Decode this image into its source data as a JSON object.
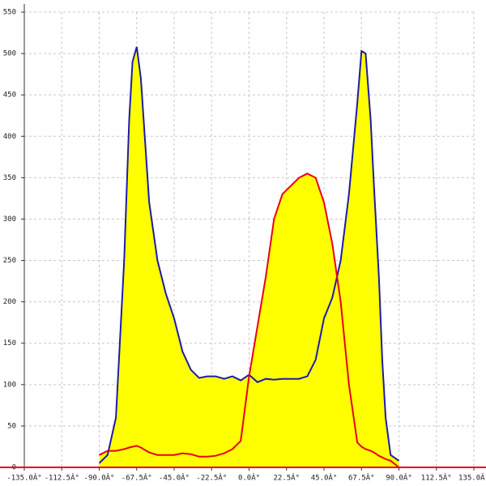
{
  "chart_data": {
    "type": "area",
    "x": [
      -90,
      -85,
      -80,
      -75,
      -72,
      -70,
      -67.5,
      -65,
      -60,
      -55,
      -50,
      -45,
      -40,
      -35,
      -30,
      -25,
      -20,
      -15,
      -10,
      -5,
      0,
      5,
      10,
      15,
      20,
      25,
      30,
      35,
      40,
      45,
      50,
      55,
      60,
      65,
      67.5,
      70,
      73,
      75,
      78,
      80,
      82,
      85,
      90
    ],
    "series": [
      {
        "color": "#1c1ca8",
        "fill": "#ffff00",
        "values": [
          5,
          15,
          60,
          250,
          420,
          490,
          508,
          470,
          320,
          250,
          210,
          180,
          140,
          118,
          108,
          110,
          110,
          107,
          110,
          105,
          112,
          103,
          107,
          106,
          107,
          107,
          107,
          110,
          130,
          180,
          205,
          250,
          330,
          440,
          503,
          500,
          420,
          340,
          230,
          130,
          60,
          15,
          8
        ]
      },
      {
        "color": "#e8001c",
        "fill": "#ffff00",
        "values": [
          15,
          20,
          20,
          22,
          24,
          25,
          26,
          24,
          18,
          15,
          15,
          15,
          17,
          16,
          13,
          13,
          14,
          17,
          22,
          32,
          110,
          170,
          230,
          300,
          330,
          340,
          350,
          355,
          350,
          320,
          270,
          200,
          100,
          30,
          25,
          22,
          20,
          18,
          14,
          12,
          10,
          8,
          0
        ]
      }
    ],
    "xlim": [
      -135,
      135
    ],
    "xticks": [
      {
        "value": -135,
        "label": "-135.0Â°"
      },
      {
        "value": -112.5,
        "label": "-112.5Â°"
      },
      {
        "value": -90,
        "label": "-90.0Â°"
      },
      {
        "value": -67.5,
        "label": "-67.5Â°"
      },
      {
        "value": -45,
        "label": "-45.0Â°"
      },
      {
        "value": -22.5,
        "label": "-22.5Â°"
      },
      {
        "value": 0,
        "label": "0.0Â°"
      },
      {
        "value": 22.5,
        "label": "22.5Â°"
      },
      {
        "value": 45,
        "label": "45.0Â°"
      },
      {
        "value": 67.5,
        "label": "67.5Â°"
      },
      {
        "value": 90,
        "label": "90.0Â°"
      },
      {
        "value": 112.5,
        "label": "112.5Â°"
      },
      {
        "value": 135,
        "label": "135.0Â°"
      }
    ],
    "ylim": [
      0,
      550
    ],
    "yticks": [
      0,
      50,
      100,
      150,
      200,
      250,
      300,
      350,
      400,
      450,
      500,
      550
    ],
    "grid": true
  }
}
